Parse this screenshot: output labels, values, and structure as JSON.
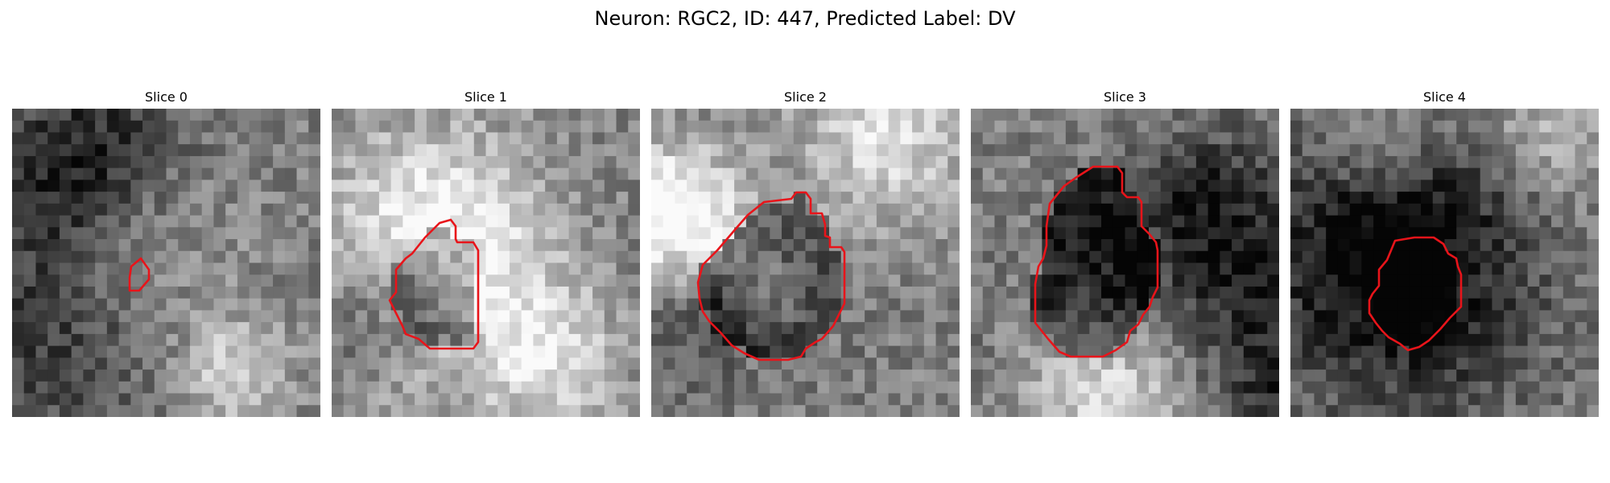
{
  "figure": {
    "title": "Neuron: RGC2, ID: 447, Predicted Label: DV",
    "outline_color": "#e8141a",
    "colormap": "grayscale",
    "panels": [
      {
        "title": "Slice 0",
        "seed": 11,
        "dark_center": 0.15
      },
      {
        "title": "Slice 1",
        "seed": 23,
        "dark_center": 0.75
      },
      {
        "title": "Slice 2",
        "seed": 37,
        "dark_center": 0.85
      },
      {
        "title": "Slice 3",
        "seed": 41,
        "dark_center": 0.9
      },
      {
        "title": "Slice 4",
        "seed": 53,
        "dark_center": 0.45
      }
    ]
  }
}
